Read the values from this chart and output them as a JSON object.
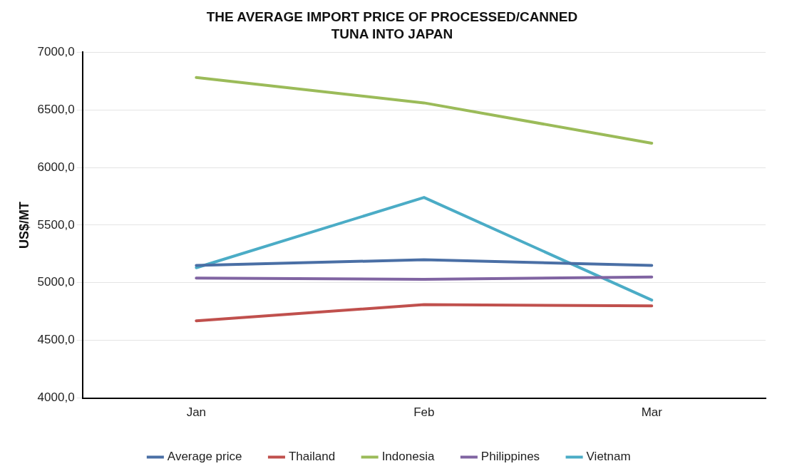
{
  "chart_data": {
    "type": "line",
    "title": "THE AVERAGE IMPORT PRICE OF PROCESSED/CANNED TUNA INTO JAPAN",
    "ylabel": "US$/MT",
    "categories": [
      "Jan",
      "Feb",
      "Mar"
    ],
    "series": [
      {
        "name": "Average price",
        "color": "#4a6fa5",
        "values": [
          5150,
          5200,
          5150
        ]
      },
      {
        "name": "Thailand",
        "color": "#c0504d",
        "values": [
          4670,
          4810,
          4800
        ]
      },
      {
        "name": "Indonesia",
        "color": "#9bbb59",
        "values": [
          6780,
          6560,
          6210
        ]
      },
      {
        "name": "Philippines",
        "color": "#8064a2",
        "values": [
          5040,
          5030,
          5050
        ]
      },
      {
        "name": "Vietnam",
        "color": "#4bacc6",
        "values": [
          5130,
          5740,
          4850
        ]
      }
    ],
    "ylim": [
      4000,
      7000
    ],
    "yticks": [
      {
        "value": 4000,
        "label": "4000,0"
      },
      {
        "value": 4500,
        "label": "4500,0"
      },
      {
        "value": 5000,
        "label": "5000,0"
      },
      {
        "value": 5500,
        "label": "5500,0"
      },
      {
        "value": 6000,
        "label": "6000,0"
      },
      {
        "value": 6500,
        "label": "6500,0"
      },
      {
        "value": 7000,
        "label": "7000,0"
      }
    ],
    "grid": "y",
    "legend": "bottom",
    "marker": "none",
    "line_style": "solid"
  }
}
